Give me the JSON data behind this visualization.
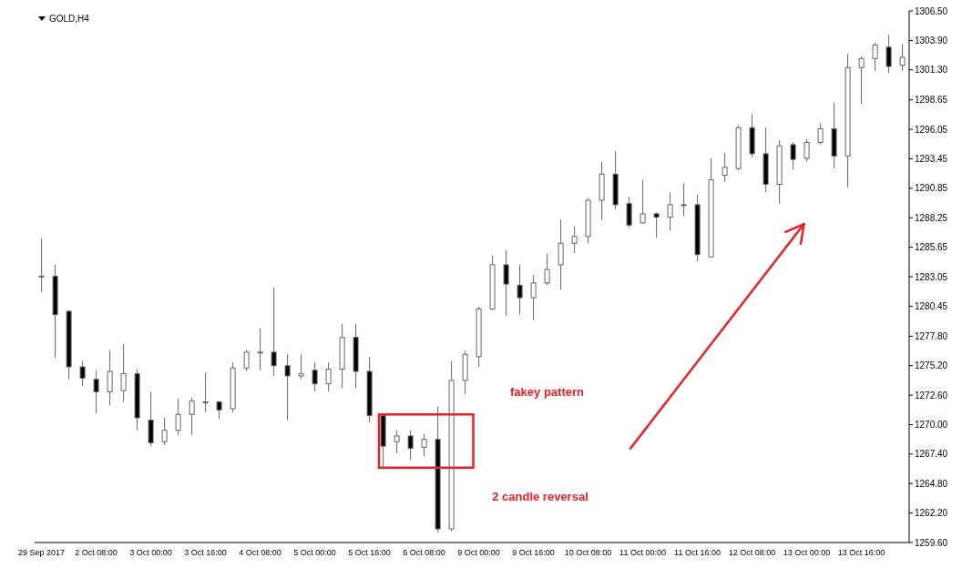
{
  "chart_data": {
    "type": "candlestick",
    "title": "GOLD,H4",
    "categories": [
      "29 Sep 2017",
      null,
      null,
      null,
      "2 Oct 08:00",
      null,
      null,
      null,
      "3 Oct 00:00",
      null,
      null,
      null,
      "3 Oct 16:00",
      null,
      null,
      null,
      "4 Oct 08:00",
      null,
      null,
      null,
      "5 Oct 00:00",
      null,
      null,
      null,
      "5 Oct 16:00",
      null,
      null,
      null,
      "6 Oct 08:00",
      null,
      null,
      null,
      "9 Oct 00:00",
      null,
      null,
      null,
      "9 Oct 16:00",
      null,
      null,
      null,
      "10 Oct 08:00",
      null,
      null,
      null,
      "11 Oct 00:00",
      null,
      null,
      null,
      "11 Oct 16:00",
      null,
      null,
      null,
      "12 Oct 08:00",
      null,
      null,
      null,
      "13 Oct 00:00",
      null,
      null,
      null,
      "13 Oct 16:00",
      null,
      null,
      null
    ],
    "ohlc": [
      [
        1283.1,
        1286.4,
        1281.7,
        1283.1
      ],
      [
        1283.1,
        1284.1,
        1275.9,
        1279.7
      ],
      [
        1280.0,
        1280.1,
        1274.0,
        1275.1
      ],
      [
        1275.1,
        1275.6,
        1273.4,
        1274.1
      ],
      [
        1274.0,
        1274.8,
        1271.0,
        1272.9
      ],
      [
        1272.9,
        1276.6,
        1271.7,
        1274.7
      ],
      [
        1273.0,
        1277.1,
        1272.0,
        1274.5
      ],
      [
        1274.5,
        1274.9,
        1269.5,
        1270.6
      ],
      [
        1270.4,
        1272.9,
        1268.1,
        1268.4
      ],
      [
        1268.5,
        1270.6,
        1268.2,
        1269.5
      ],
      [
        1269.5,
        1272.3,
        1269.1,
        1270.9
      ],
      [
        1270.9,
        1272.4,
        1269.1,
        1272.1
      ],
      [
        1272.0,
        1274.6,
        1271.1,
        1272.0
      ],
      [
        1272.0,
        1272.1,
        1270.5,
        1271.3
      ],
      [
        1271.4,
        1275.5,
        1271.1,
        1275.0
      ],
      [
        1275.0,
        1276.6,
        1274.7,
        1276.4
      ],
      [
        1276.4,
        1278.5,
        1274.8,
        1276.4
      ],
      [
        1276.4,
        1282.1,
        1274.3,
        1275.2
      ],
      [
        1275.2,
        1276.2,
        1270.4,
        1274.3
      ],
      [
        1274.3,
        1276.2,
        1274.0,
        1274.5
      ],
      [
        1274.8,
        1275.5,
        1272.9,
        1273.6
      ],
      [
        1273.6,
        1275.5,
        1272.9,
        1274.9
      ],
      [
        1274.9,
        1278.9,
        1273.2,
        1277.7
      ],
      [
        1277.7,
        1278.9,
        1273.2,
        1274.7
      ],
      [
        1274.7,
        1276.0,
        1270.2,
        1270.8
      ],
      [
        1270.8,
        1270.9,
        1266.1,
        1268.1
      ],
      [
        1268.5,
        1269.5,
        1267.5,
        1269.0
      ],
      [
        1269.0,
        1269.5,
        1266.9,
        1267.9
      ],
      [
        1268.0,
        1269.2,
        1267.2,
        1268.7
      ],
      [
        1268.7,
        1271.6,
        1260.5,
        1260.8
      ],
      [
        1260.8,
        1275.6,
        1260.6,
        1273.9
      ],
      [
        1273.9,
        1276.5,
        1272.7,
        1276.2
      ],
      [
        1276.0,
        1280.4,
        1275.1,
        1280.2
      ],
      [
        1280.2,
        1284.9,
        1280.2,
        1284.1
      ],
      [
        1284.1,
        1285.4,
        1279.6,
        1282.4
      ],
      [
        1282.3,
        1284.1,
        1279.7,
        1281.2
      ],
      [
        1281.2,
        1283.2,
        1279.2,
        1282.5
      ],
      [
        1282.5,
        1285.1,
        1282.3,
        1283.7
      ],
      [
        1284.1,
        1288.1,
        1281.9,
        1286.0
      ],
      [
        1286.0,
        1287.5,
        1285.1,
        1286.6
      ],
      [
        1286.6,
        1290.0,
        1286.0,
        1289.8
      ],
      [
        1289.8,
        1293.2,
        1288.1,
        1292.1
      ],
      [
        1292.1,
        1294.1,
        1289.0,
        1289.4
      ],
      [
        1289.5,
        1290.1,
        1287.4,
        1287.6
      ],
      [
        1287.8,
        1291.6,
        1287.7,
        1288.6
      ],
      [
        1288.6,
        1288.7,
        1286.5,
        1288.3
      ],
      [
        1288.3,
        1290.5,
        1287.1,
        1289.4
      ],
      [
        1289.4,
        1291.3,
        1288.4,
        1289.4
      ],
      [
        1289.4,
        1290.3,
        1284.4,
        1285.0
      ],
      [
        1284.8,
        1293.5,
        1284.8,
        1291.6
      ],
      [
        1292.0,
        1294.0,
        1291.4,
        1292.7
      ],
      [
        1292.6,
        1296.4,
        1292.4,
        1296.2
      ],
      [
        1296.2,
        1297.4,
        1293.6,
        1293.9
      ],
      [
        1293.9,
        1296.2,
        1290.5,
        1291.2
      ],
      [
        1291.2,
        1295.1,
        1289.5,
        1294.6
      ],
      [
        1294.7,
        1294.9,
        1292.5,
        1293.4
      ],
      [
        1293.5,
        1295.2,
        1293.2,
        1294.9
      ],
      [
        1294.9,
        1296.6,
        1294.7,
        1296.1
      ],
      [
        1296.1,
        1298.4,
        1292.6,
        1293.7
      ],
      [
        1293.7,
        1302.7,
        1290.9,
        1301.5
      ],
      [
        1301.5,
        1302.5,
        1298.3,
        1302.3
      ],
      [
        1302.3,
        1303.7,
        1301.2,
        1303.5
      ],
      [
        1303.3,
        1304.4,
        1301.0,
        1301.6
      ],
      [
        1301.7,
        1303.6,
        1301.2,
        1302.4
      ]
    ],
    "ylim": [
      1259.6,
      1306.5
    ],
    "yticks": [
      {
        "value": 1306.5,
        "label": "1306.50"
      },
      {
        "value": 1303.9,
        "label": "1303.90"
      },
      {
        "value": 1301.3,
        "label": "1301.30"
      },
      {
        "value": 1298.65,
        "label": "1298.65"
      },
      {
        "value": 1296.05,
        "label": "1296.05"
      },
      {
        "value": 1293.45,
        "label": "1293.45"
      },
      {
        "value": 1290.85,
        "label": "1290.85"
      },
      {
        "value": 1288.25,
        "label": "1288.25"
      },
      {
        "value": 1285.65,
        "label": "1285.65"
      },
      {
        "value": 1283.05,
        "label": "1283.05"
      },
      {
        "value": 1280.45,
        "label": "1280.45"
      },
      {
        "value": 1277.8,
        "label": "1277.80"
      },
      {
        "value": 1275.2,
        "label": "1275.20"
      },
      {
        "value": 1272.6,
        "label": "1272.60"
      },
      {
        "value": 1270,
        "label": "1270.00"
      },
      {
        "value": 1267.4,
        "label": "1267.40"
      },
      {
        "value": 1264.8,
        "label": "1264.80"
      },
      {
        "value": 1262.2,
        "label": "1262.20"
      },
      {
        "value": 1259.6,
        "label": "1259.60"
      }
    ],
    "annotations": [
      "fakey pattern",
      "2 candle reversal"
    ]
  }
}
